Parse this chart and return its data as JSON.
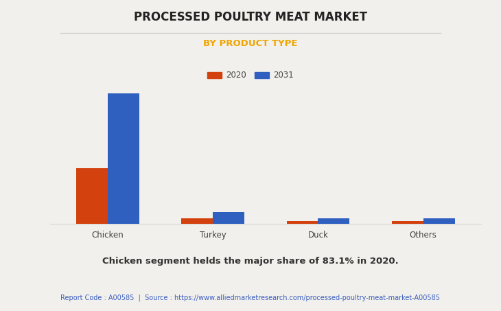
{
  "title": "PROCESSED POULTRY MEAT MARKET",
  "subtitle": "BY PRODUCT TYPE",
  "categories": [
    "Chicken",
    "Turkey",
    "Duck",
    "Others"
  ],
  "values_2020": [
    83.1,
    8.5,
    4.2,
    4.0
  ],
  "values_2031": [
    195.0,
    18.0,
    8.5,
    8.0
  ],
  "color_2020": "#d2410e",
  "color_2031": "#2f5fbf",
  "subtitle_color": "#f0a500",
  "bg_color": "#f2f0ec",
  "legend_labels": [
    "2020",
    "2031"
  ],
  "annotation": "Chicken segment helds the major share of 83.1% in 2020.",
  "footer": "Report Code : A00585  |  Source : https://www.alliedmarketresearch.com/processed-poultry-meat-market-A00585",
  "footer_color": "#3a5fbf",
  "title_fontsize": 12,
  "subtitle_fontsize": 9.5,
  "annotation_fontsize": 9.5,
  "footer_fontsize": 7,
  "bar_width": 0.3,
  "grid_color": "#d8d5d0",
  "separator_color": "#cccccc"
}
